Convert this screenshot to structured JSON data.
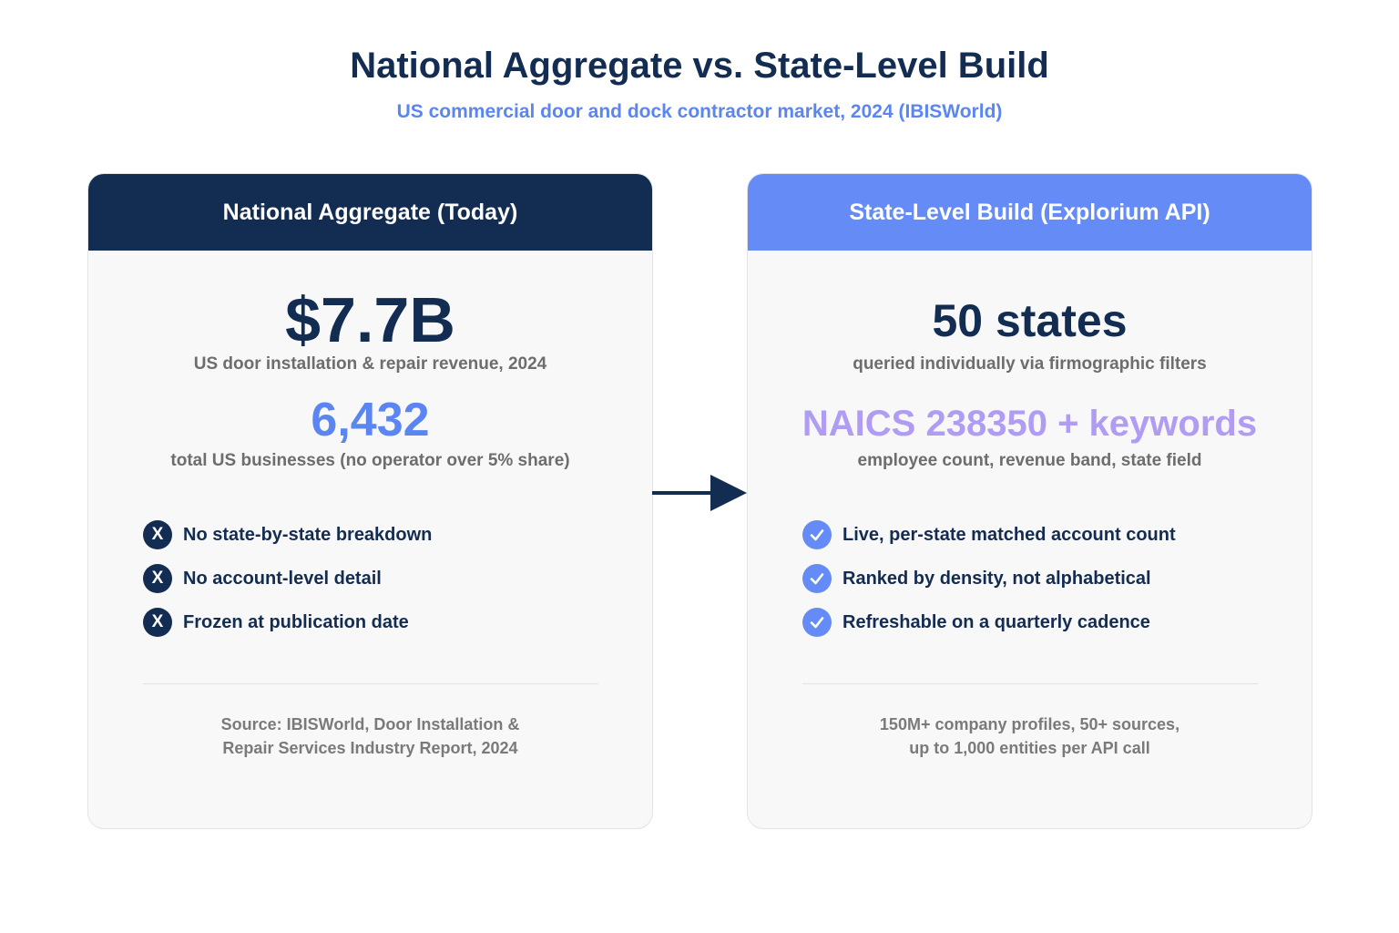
{
  "title": "National Aggregate vs. State-Level Build",
  "subtitle": "US commercial door and dock contractor market, 2024 (IBISWorld)",
  "left_card": {
    "header": "National Aggregate (Today)",
    "metric1_value": "$7.7B",
    "metric1_caption": "US door installation & repair revenue, 2024",
    "metric2_value": "6,432",
    "metric2_caption": "total US businesses (no operator over 5% share)",
    "bullet_icon_glyph": "X",
    "bullets": [
      "No state-by-state breakdown",
      "No account-level detail",
      "Frozen at publication date"
    ],
    "footnote_line1": "Source: IBISWorld, Door Installation &",
    "footnote_line2": "Repair Services Industry Report, 2024"
  },
  "right_card": {
    "header": "State-Level Build (Explorium API)",
    "metric1_value": "50 states",
    "metric1_caption": "queried individually via firmographic filters",
    "metric2_value": "NAICS 238350 + keywords",
    "metric2_caption": "employee count, revenue band, state field",
    "bullets": [
      "Live, per-state matched account count",
      "Ranked by density, not alphabetical",
      "Refreshable on a quarterly cadence"
    ],
    "footnote_line1": "150M+ company profiles, 50+ sources,",
    "footnote_line2": "up to 1,000 entities per API call"
  },
  "colors": {
    "navy": "#132c52",
    "blue": "#658cf6",
    "purple": "#b19cf4",
    "gray_text": "#6d6d6d"
  },
  "icons": {
    "left_bullets": "x-circle-icon",
    "right_bullets": "check-circle-icon",
    "connector": "arrow-right-icon"
  }
}
